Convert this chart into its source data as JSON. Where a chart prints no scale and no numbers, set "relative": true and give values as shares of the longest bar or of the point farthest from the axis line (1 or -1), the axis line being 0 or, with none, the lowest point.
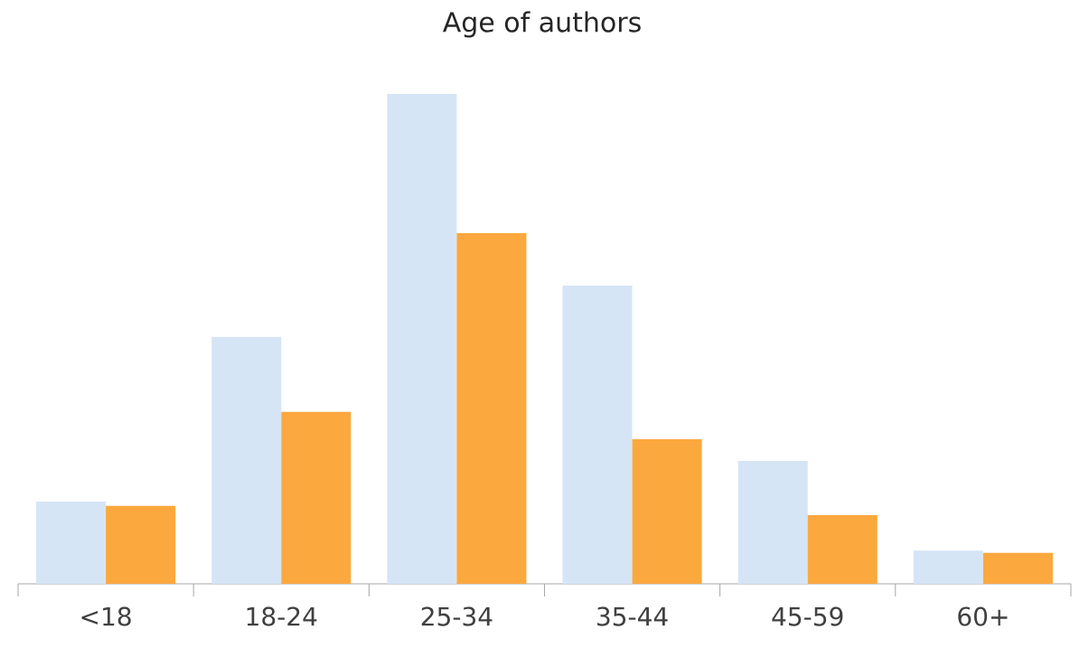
{
  "chart_data": {
    "type": "bar",
    "title": "Age of authors",
    "relative": true,
    "categories": [
      "<18",
      "18-24",
      "25-34",
      "35-44",
      "45-59",
      "60+"
    ],
    "series": [
      {
        "color": "#d6e5f5",
        "values": [
          0.168,
          0.504,
          1,
          0.609,
          0.251,
          0.068
        ]
      },
      {
        "color": "#fba83e",
        "values": [
          0.159,
          0.351,
          0.716,
          0.295,
          0.14,
          0.063
        ]
      }
    ]
  }
}
